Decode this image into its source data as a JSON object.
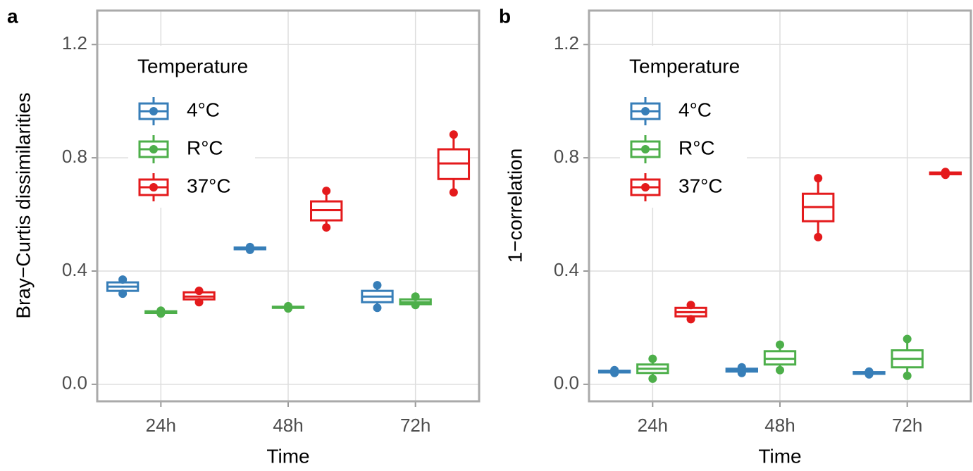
{
  "chart_data": [
    {
      "type": "box",
      "panel_label": "a",
      "y_label": "Bray−Curtis dissimilarities",
      "x_label": "Time",
      "legend_title": "Temperature",
      "categories": [
        "24h",
        "48h",
        "72h"
      ],
      "ylim": [
        -0.06,
        1.32
      ],
      "yticks": [
        {
          "value": 0,
          "label": "0.0"
        },
        0.4,
        0.8,
        1.2
      ],
      "grid": true,
      "series": [
        {
          "name": "4°C",
          "color": "#377eb8",
          "min": [
            0.32,
            0.475,
            0.27
          ],
          "q1": [
            0.33,
            0.477,
            0.29
          ],
          "median": [
            0.345,
            0.48,
            0.31
          ],
          "q3": [
            0.36,
            0.483,
            0.33
          ],
          "max": [
            0.37,
            0.485,
            0.35
          ]
        },
        {
          "name": "R°C",
          "color": "#4daf4a",
          "min": [
            0.25,
            0.268,
            0.28
          ],
          "q1": [
            0.252,
            0.27,
            0.283
          ],
          "median": [
            0.255,
            0.272,
            0.29
          ],
          "q3": [
            0.258,
            0.274,
            0.3
          ],
          "max": [
            0.26,
            0.276,
            0.31
          ]
        },
        {
          "name": "37°C",
          "color": "#e41a1c",
          "min": [
            0.29,
            0.554,
            0.678
          ],
          "q1": [
            0.3,
            0.579,
            0.725
          ],
          "median": [
            0.31,
            0.615,
            0.78
          ],
          "q3": [
            0.325,
            0.646,
            0.83
          ],
          "max": [
            0.33,
            0.683,
            0.882
          ]
        }
      ]
    },
    {
      "type": "box",
      "panel_label": "b",
      "y_label": "1−correlation",
      "x_label": "Time",
      "legend_title": "Temperature",
      "categories": [
        "24h",
        "48h",
        "72h"
      ],
      "ylim": [
        -0.06,
        1.32
      ],
      "yticks": [
        {
          "value": 0,
          "label": "0.0"
        },
        0.4,
        0.8,
        1.2
      ],
      "grid": true,
      "series": [
        {
          "name": "4°C",
          "color": "#377eb8",
          "min": [
            0.04,
            0.04,
            0.035
          ],
          "q1": [
            0.042,
            0.045,
            0.037
          ],
          "median": [
            0.045,
            0.05,
            0.04
          ],
          "q3": [
            0.048,
            0.055,
            0.043
          ],
          "max": [
            0.05,
            0.06,
            0.045
          ]
        },
        {
          "name": "R°C",
          "color": "#4daf4a",
          "min": [
            0.02,
            0.05,
            0.03
          ],
          "q1": [
            0.04,
            0.07,
            0.06
          ],
          "median": [
            0.055,
            0.09,
            0.09
          ],
          "q3": [
            0.07,
            0.117,
            0.12
          ],
          "max": [
            0.09,
            0.14,
            0.16
          ]
        },
        {
          "name": "37°C",
          "color": "#e41a1c",
          "min": [
            0.23,
            0.52,
            0.74
          ],
          "q1": [
            0.24,
            0.576,
            0.742
          ],
          "median": [
            0.255,
            0.626,
            0.745
          ],
          "q3": [
            0.27,
            0.673,
            0.748
          ],
          "max": [
            0.28,
            0.728,
            0.75
          ]
        }
      ]
    }
  ]
}
